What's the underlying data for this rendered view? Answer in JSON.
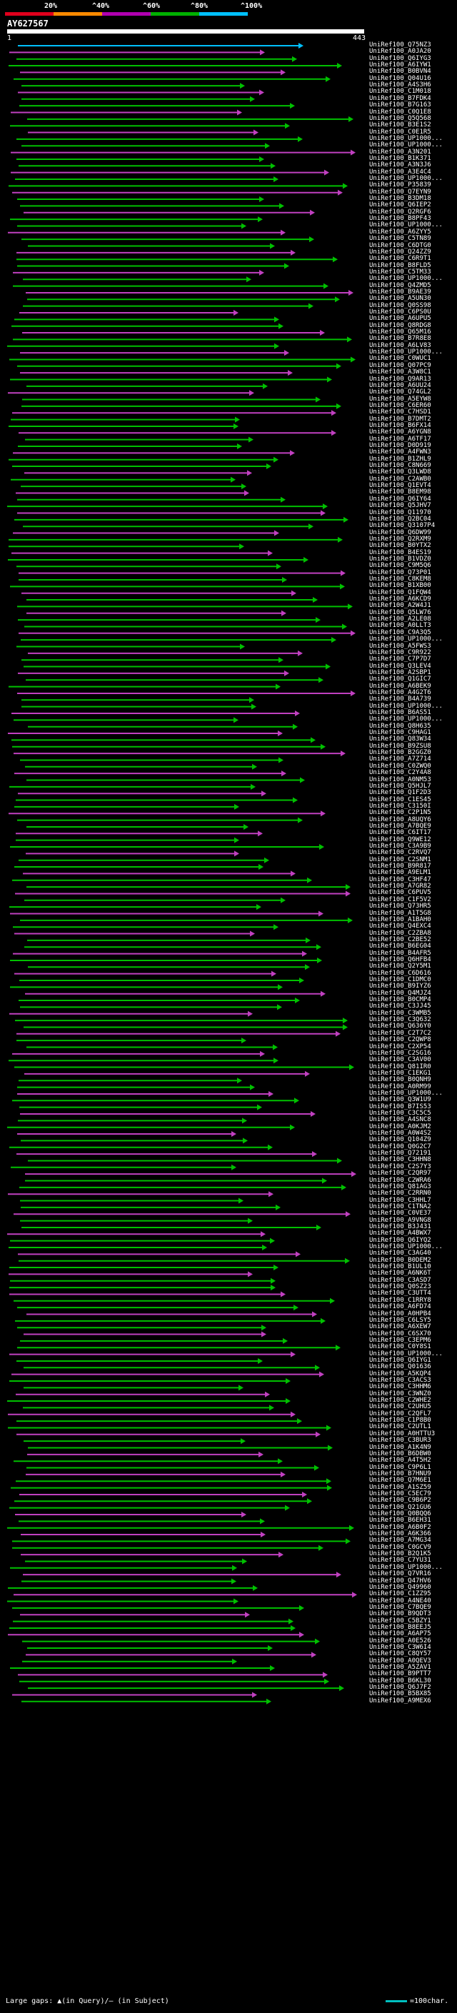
{
  "scale": {
    "labels": [
      "20%",
      "^40%",
      "^60%",
      "^80%",
      "^100%"
    ],
    "colors": [
      "#e0001c",
      "#ff8a00",
      "#b000b0",
      "#00b000",
      "#00c0ff"
    ]
  },
  "query": {
    "name": "AY627567",
    "start": "1",
    "end": "443"
  },
  "footer": {
    "legend": "Large gaps: ▲(in Query)/— (in Subject)",
    "scale_note": "=100char."
  },
  "colors": {
    "hit_green": "#00c000",
    "hit_magenta": "#c040c0",
    "hit_cyan": "#00c0ff",
    "background": "#000000"
  },
  "hits": [
    "UniRef100_Q75NZ3",
    "UniRef100_A0JA20",
    "UniRef100_Q6IYG3",
    "UniRef100_A6IYW1",
    "UniRef100_B0BVN4",
    "UniRef100_Q04U16",
    "UniRef100_A4S3H6",
    "UniRef100_C1M018",
    "UniRef100_B7FDK4",
    "UniRef100_B7G163",
    "UniRef100_C0Q1E8",
    "UniRef100_Q5Q568",
    "UniRef100_B3E1S2",
    "UniRef100_C0E1R5",
    "UniRef100_UP1000...",
    "UniRef100_UP1000...",
    "UniRef100_A3N201",
    "UniRef100_B1K371",
    "UniRef100_A3N3J6",
    "UniRef100_A3E4C4",
    "UniRef100_UP1000...",
    "UniRef100_P35839",
    "UniRef100_Q7EYN9",
    "UniRef100_B3DM18",
    "UniRef100_Q6IEP2",
    "UniRef100_Q2RGF6",
    "UniRef100_B8PF43",
    "UniRef100_UP1000...",
    "UniRef100_A6ZYY5",
    "UniRef100_C5TN89",
    "UniRef100_C6DTG0",
    "UniRef100_Q24ZZ9",
    "UniRef100_C6R9T1",
    "UniRef100_B8FLD5",
    "UniRef100_C5TM33",
    "UniRef100_UP1000...",
    "UniRef100_Q4ZMD5",
    "UniRef100_B9AE39",
    "UniRef100_A5UN30",
    "UniRef100_Q0SS98",
    "UniRef100_C6PS0U",
    "UniRef100_A6UPU5",
    "UniRef100_Q8RDG8",
    "UniRef100_Q65M16",
    "UniRef100_B7R8E8",
    "UniRef100_A6LV83",
    "UniRef100_UP1000...",
    "UniRef100_C0WUC1",
    "UniRef100_Q07PC9",
    "UniRef100_A3W8C1",
    "UniRef100_Q9AR13",
    "UniRef100_A6UU24",
    "UniRef100_Q74GL2",
    "UniRef100_A5EYW8",
    "UniRef100_C6ER60",
    "UniRef100_C7HSD1",
    "UniRef100_B7DMT2",
    "UniRef100_B6FX14",
    "UniRef100_A6YGN8",
    "UniRef100_A6TF17",
    "UniRef100_D0D919",
    "UniRef100_A4FWN3",
    "UniRef100_B1ZHL9",
    "UniRef100_C8N669",
    "UniRef100_Q3LWD8",
    "UniRef100_C2AWB0",
    "UniRef100_Q1EVT4",
    "UniRef100_B8EM98",
    "UniRef100_Q6IY64",
    "UniRef100_Q5JHV7",
    "UniRef100_Q11970",
    "UniRef100_Q2BC04",
    "UniRef100_Q3107P4",
    "UniRef100_Q6DW99",
    "UniRef100_Q2RXM9",
    "UniRef100_B0YTX2",
    "UniRef100_B4ES19",
    "UniRef100_B1VDZ0",
    "UniRef100_C9M5Q6",
    "UniRef100_Q73P01",
    "UniRef100_C8KEM8",
    "UniRef100_B1XB00",
    "UniRef100_Q1FQW4",
    "UniRef100_A6KCD9",
    "UniRef100_A2W4J1",
    "UniRef100_Q5LW76",
    "UniRef100_A2LE08",
    "UniRef100_A0LLT3",
    "UniRef100_C9A3Q5",
    "UniRef100_UP1000...",
    "UniRef100_A5FWS3",
    "UniRef100_C9R922",
    "UniRef100_C7P7D7",
    "UniRef100_Q3LEV4",
    "UniRef100_A2SBP1",
    "UniRef100_Q1GIC7",
    "UniRef100_A6BEK9",
    "UniRef100_A4G2T6",
    "UniRef100_B4A739",
    "UniRef100_UP1000...",
    "UniRef100_B6AS51",
    "UniRef100_UP1000...",
    "UniRef100_Q8H635",
    "UniRef100_C9HAG1",
    "UniRef100_Q83W34",
    "UniRef100_B9ZSU8",
    "UniRef100_B2GGZ0",
    "UniRef100_A7Z714",
    "UniRef100_C0ZWQ0",
    "UniRef100_C2Y4A8",
    "UniRef100_A0NM53",
    "UniRef100_Q5HJL7",
    "UniRef100_Q1F2D3",
    "UniRef100_C1ES45",
    "UniRef100_C3150I",
    "UniRef100_C2P1N5",
    "UniRef100_A8UQY6",
    "UniRef100_A7BQE9",
    "UniRef100_C6IT17",
    "UniRef100_Q9WE12",
    "UniRef100_C3A9B9",
    "UniRef100_C2RVQ7",
    "UniRef100_C2SNM1",
    "UniRef100_B9R817",
    "UniRef100_A9ELM1",
    "UniRef100_C3HF47",
    "UniRef100_A7GR82",
    "UniRef100_C6PUV5",
    "UniRef100_C1F5V2",
    "UniRef100_Q73HR5",
    "UniRef100_A1T5G8",
    "UniRef100_A1BAH0",
    "UniRef100_Q4EXC4",
    "UniRef100_C2ZBA8",
    "UniRef100_C2BE52",
    "UniRef100_B6EG04",
    "UniRef100_B4AFR5",
    "UniRef100_Q6HFB4",
    "UniRef100_Q2Y5M1",
    "UniRef100_C6D616",
    "UniRef100_C1DMC0",
    "UniRef100_B9IYZ6",
    "UniRef100_Q4MJZ4",
    "UniRef100_B0CMP4",
    "UniRef100_C3JJ45",
    "UniRef100_C3WMB5",
    "UniRef100_C3Q632",
    "UniRef100_Q636Y0",
    "UniRef100_C2T7C2",
    "UniRef100_C2QWP8",
    "UniRef100_C2XP54",
    "UniRef100_C2SG16",
    "UniRef100_C3AV00",
    "UniRef100_Q81IR0",
    "UniRef100_C1EKG1",
    "UniRef100_B0QNH9",
    "UniRef100_A0RM99",
    "UniRef100_UP1000...",
    "UniRef100_Q3W1U9",
    "UniRef100_B7IS53",
    "UniRef100_C3C5C5",
    "UniRef100_A4SNC8",
    "UniRef100_A0KJM2",
    "UniRef100_A0W4S2",
    "UniRef100_Q104Z9",
    "UniRef100_Q0G2C7",
    "UniRef100_Q72191",
    "UniRef100_C3HHN8",
    "UniRef100_C2S7Y3",
    "UniRef100_C2QR97",
    "UniRef100_C2WRA6",
    "UniRef100_Q81AG3",
    "UniRef100_C2RRN0",
    "UniRef100_C3HHL7",
    "UniRef100_C1TNA2",
    "UniRef100_C0VE37",
    "UniRef100_A9VNG8",
    "UniRef100_B3J431",
    "UniRef100_A4BWX7",
    "UniRef100_Q6IYQ2",
    "UniRef100_UP1000...",
    "UniRef100_C3AG40",
    "UniRef100_B0DEM2",
    "UniRef100_B1UL10",
    "UniRef100_A6NK6T",
    "UniRef100_C3ASD7",
    "UniRef100_Q0SZ23",
    "UniRef100_C3UTT4",
    "UniRef100_C1RRY8",
    "UniRef100_A6FD74",
    "UniRef100_A0HPB4",
    "UniRef100_C6LSY5",
    "UniRef100_A6XEW7",
    "UniRef100_C6SX70",
    "UniRef100_C3EPM6",
    "UniRef100_C0Y8S1",
    "UniRef100_UP1000...",
    "UniRef100_Q6IYG1",
    "UniRef100_Q01636",
    "UniRef100_A5KQP4",
    "UniRef100_C3ACS3",
    "UniRef100_C3HHM6",
    "UniRef100_C3WNZ0",
    "UniRef100_C2WHE2",
    "UniRef100_C2UHU5",
    "UniRef100_C2QFL7",
    "UniRef100_C1P8B0",
    "UniRef100_C2UTL1",
    "UniRef100_A0HTTU3",
    "UniRef100_C3BUR3",
    "UniRef100_A1K4N9",
    "UniRef100_B6DBW0",
    "UniRef100_A4T5H2",
    "UniRef100_C9P6L1",
    "UniRef100_B7HNU9",
    "UniRef100_Q7M6E1",
    "UniRef100_A1SZ59",
    "UniRef100_C5EC79",
    "UniRef100_C9B6P2",
    "UniRef100_Q21GU6",
    "UniRef100_Q0BQQ6",
    "UniRef100_B6EH31",
    "UniRef100_A6B0F2",
    "UniRef100_A6K366",
    "UniRef100_A7MG34",
    "UniRef100_C0GCV9",
    "UniRef100_B2Q1K5",
    "UniRef100_C7YU31",
    "UniRef100_UP1000...",
    "UniRef100_Q7VR16",
    "UniRef100_Q47HV6",
    "UniRef100_Q49960",
    "UniRef100_C1ZZ95",
    "UniRef100_A4NE40",
    "UniRef100_C7BQE9",
    "UniRef100_B9QDT3",
    "UniRef100_C5BZY1",
    "UniRef100_B8EEJ5",
    "UniRef100_A6AP75",
    "UniRef100_A0E526",
    "UniRef100_C3W6I4",
    "UniRef100_C8QY57",
    "UniRef100_A0QEV3",
    "UniRef100_A5ZAV1",
    "UniRef100_B9PTT7",
    "UniRef100_B6KL30",
    "UniRef100_Q6J7F2",
    "UniRef100_B5BX85",
    "UniRef100_A9MEX6"
  ]
}
